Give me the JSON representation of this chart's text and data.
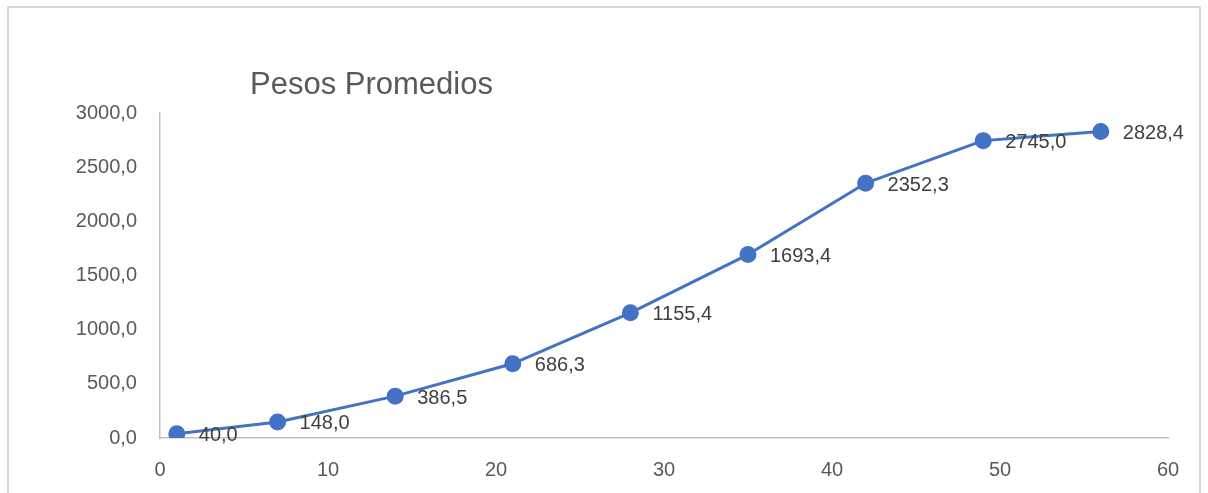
{
  "chart_data": {
    "type": "line",
    "title": "Pesos Promedios",
    "x": [
      1,
      7,
      14,
      21,
      28,
      35,
      42,
      49,
      56
    ],
    "series": [
      {
        "color": "#4472c4",
        "values": [
          40.0,
          148.0,
          386.5,
          686.3,
          1155.4,
          1693.4,
          2352.3,
          2745.0,
          2828.4
        ],
        "value_labels": [
          "40,0",
          "148,0",
          "386,5",
          "686,3",
          "1155,4",
          "1693,4",
          "2352,3",
          "2745,0",
          "2828,4"
        ]
      }
    ],
    "xlim": [
      0,
      60
    ],
    "xticks": [
      0,
      10,
      20,
      30,
      40,
      50,
      60
    ],
    "ylim": [
      0,
      3000
    ],
    "yticks": [
      {
        "value": 0,
        "label": "0,0"
      },
      {
        "value": 500,
        "label": "500,0"
      },
      {
        "value": 1000,
        "label": "1000,0"
      },
      {
        "value": 1500,
        "label": "1500,0"
      },
      {
        "value": 2000,
        "label": "2000,0"
      },
      {
        "value": 2500,
        "label": "2500,0"
      },
      {
        "value": 3000,
        "label": "3000,0"
      }
    ],
    "grid": false,
    "legend": false,
    "marker": "circle",
    "line_style": "solid"
  }
}
